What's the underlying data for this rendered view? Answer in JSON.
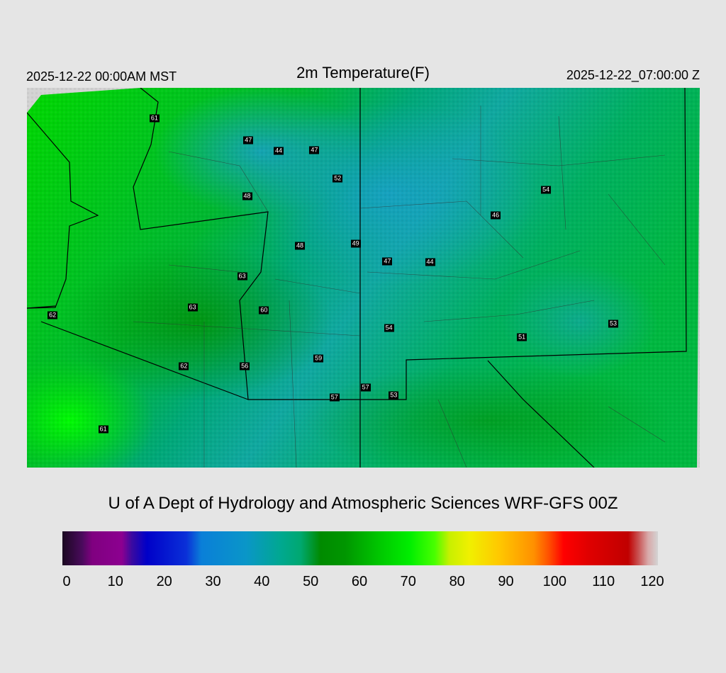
{
  "header": {
    "local_time": "2025-12-22 00:00AM MST",
    "title": "2m Temperature(F)",
    "utc_time": "2025-12-22_07:00:00 Z"
  },
  "stations": [
    {
      "value": "61",
      "lon": -117.02,
      "lat": 47.63
    },
    {
      "value": "47",
      "lon": -114.09,
      "lat": 46.92
    },
    {
      "value": "44",
      "lon": -113.14,
      "lat": 46.58
    },
    {
      "value": "47",
      "lon": -112.03,
      "lat": 46.6
    },
    {
      "value": "52",
      "lon": -111.3,
      "lat": 45.68
    },
    {
      "value": "48",
      "lon": -114.13,
      "lat": 45.13
    },
    {
      "value": "48",
      "lon": -112.48,
      "lat": 43.52
    },
    {
      "value": "49",
      "lon": -110.74,
      "lat": 43.6
    },
    {
      "value": "47",
      "lon": -109.75,
      "lat": 43.03
    },
    {
      "value": "44",
      "lon": -108.42,
      "lat": 43.0
    },
    {
      "value": "54",
      "lon": -104.8,
      "lat": 45.32
    },
    {
      "value": "46",
      "lon": -106.37,
      "lat": 44.5
    },
    {
      "value": "63",
      "lon": -114.28,
      "lat": 42.55
    },
    {
      "value": "63",
      "lon": -115.83,
      "lat": 41.55
    },
    {
      "value": "60",
      "lon": -113.6,
      "lat": 41.45
    },
    {
      "value": "62",
      "lon": -120.2,
      "lat": 41.3
    },
    {
      "value": "54",
      "lon": -109.7,
      "lat": 40.88
    },
    {
      "value": "51",
      "lon": -105.55,
      "lat": 40.58
    },
    {
      "value": "53",
      "lon": -102.7,
      "lat": 41.03
    },
    {
      "value": "59",
      "lon": -111.9,
      "lat": 39.9
    },
    {
      "value": "62",
      "lon": -116.1,
      "lat": 39.65
    },
    {
      "value": "56",
      "lon": -114.2,
      "lat": 39.65
    },
    {
      "value": "57",
      "lon": -110.43,
      "lat": 38.98
    },
    {
      "value": "57",
      "lon": -111.4,
      "lat": 38.66
    },
    {
      "value": "53",
      "lon": -109.55,
      "lat": 38.72
    },
    {
      "value": "61",
      "lon": -118.62,
      "lat": 37.64
    }
  ],
  "map": {
    "lon_range": [
      -121.0,
      -100.0
    ],
    "lat_range": [
      36.4,
      48.6
    ],
    "projection": "lambert-conformal"
  },
  "footer": {
    "credit": "U of A Dept of Hydrology and Atmospheric Sciences WRF-GFS 00Z"
  },
  "colorbar": {
    "min": 0,
    "max": 120,
    "ticks": [
      "0",
      "10",
      "20",
      "30",
      "40",
      "50",
      "60",
      "70",
      "80",
      "90",
      "100",
      "110",
      "120"
    ],
    "stops": [
      {
        "v": 0,
        "c": "#1a0820"
      },
      {
        "v": 4,
        "c": "#4a0a5c"
      },
      {
        "v": 6,
        "c": "#800080"
      },
      {
        "v": 12,
        "c": "#8c0090"
      },
      {
        "v": 14,
        "c": "#3a0aa0"
      },
      {
        "v": 17,
        "c": "#0000c8"
      },
      {
        "v": 25,
        "c": "#0a30d8"
      },
      {
        "v": 28,
        "c": "#0a7fd8"
      },
      {
        "v": 37,
        "c": "#0a96c8"
      },
      {
        "v": 44,
        "c": "#00a890"
      },
      {
        "v": 48,
        "c": "#00a870"
      },
      {
        "v": 52,
        "c": "#008a00"
      },
      {
        "v": 57,
        "c": "#009600"
      },
      {
        "v": 64,
        "c": "#00c800"
      },
      {
        "v": 70,
        "c": "#00ee00"
      },
      {
        "v": 75,
        "c": "#48ff00"
      },
      {
        "v": 78,
        "c": "#c8f000"
      },
      {
        "v": 82,
        "c": "#f0f000"
      },
      {
        "v": 88,
        "c": "#ffc800"
      },
      {
        "v": 95,
        "c": "#ff9000"
      },
      {
        "v": 98,
        "c": "#ff5000"
      },
      {
        "v": 101,
        "c": "#ff0000"
      },
      {
        "v": 106,
        "c": "#e00000"
      },
      {
        "v": 114,
        "c": "#c00000"
      },
      {
        "v": 116,
        "c": "#c85050"
      },
      {
        "v": 118,
        "c": "#d8a8a8"
      },
      {
        "v": 120,
        "c": "#d4d4d4"
      }
    ]
  }
}
